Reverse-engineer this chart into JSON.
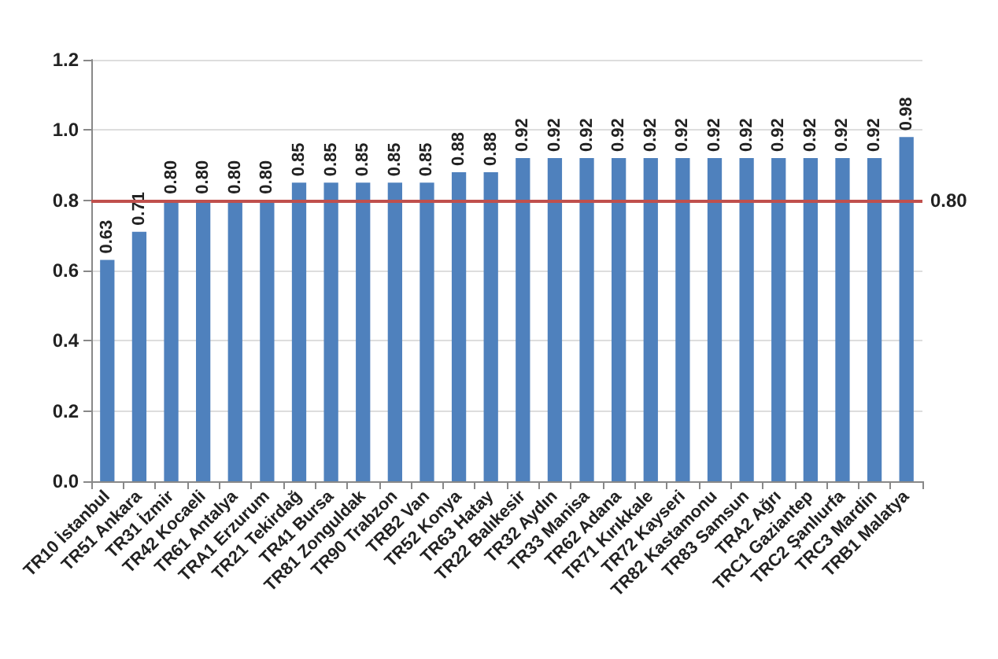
{
  "chart_data": {
    "type": "bar",
    "categories": [
      "TR10 İstanbul",
      "TR51 Ankara",
      "TR31 İzmir",
      "TR42 Kocaeli",
      "TR61 Antalya",
      "TRA1 Erzurum",
      "TR21 Tekirdağ",
      "TR41 Bursa",
      "TR81 Zonguldak",
      "TR90 Trabzon",
      "TRB2 Van",
      "TR52 Konya",
      "TR63 Hatay",
      "TR22 Balıkesir",
      "TR32 Aydın",
      "TR33 Manisa",
      "TR62 Adana",
      "TR71 Kırıkkale",
      "TR72 Kayseri",
      "TR82 Kastamonu",
      "TR83 Samsun",
      "TRA2 Ağrı",
      "TRC1 Gaziantep",
      "TRC2 Şanlıurfa",
      "TRC3 Mardin",
      "TRB1 Malatya"
    ],
    "values": [
      0.63,
      0.71,
      0.8,
      0.8,
      0.8,
      0.8,
      0.85,
      0.85,
      0.85,
      0.85,
      0.85,
      0.88,
      0.88,
      0.92,
      0.92,
      0.92,
      0.92,
      0.92,
      0.92,
      0.92,
      0.92,
      0.92,
      0.92,
      0.92,
      0.92,
      0.98
    ],
    "value_labels": [
      "0.63",
      "0.71",
      "0.80",
      "0.80",
      "0.80",
      "0.80",
      "0.85",
      "0.85",
      "0.85",
      "0.85",
      "0.85",
      "0.88",
      "0.88",
      "0.92",
      "0.92",
      "0.92",
      "0.92",
      "0.92",
      "0.92",
      "0.92",
      "0.92",
      "0.92",
      "0.92",
      "0.92",
      "0.92",
      "0.98"
    ],
    "color": "#4f81bd",
    "ylim": [
      0,
      1.2
    ],
    "yticks": [
      {
        "value": 0,
        "label": "0.0"
      },
      {
        "value": 0.2,
        "label": "0.2"
      },
      {
        "value": 0.4,
        "label": "0.4"
      },
      {
        "value": 0.6,
        "label": "0.6"
      },
      {
        "value": 0.8,
        "label": "0.8"
      },
      {
        "value": 1,
        "label": "1.0"
      },
      {
        "value": 1.2,
        "label": "1.2"
      }
    ],
    "ref_lines": [
      {
        "axis": "y",
        "value": 0.8,
        "label": "0.80",
        "color": "#c0504d"
      }
    ],
    "grid": "y"
  }
}
